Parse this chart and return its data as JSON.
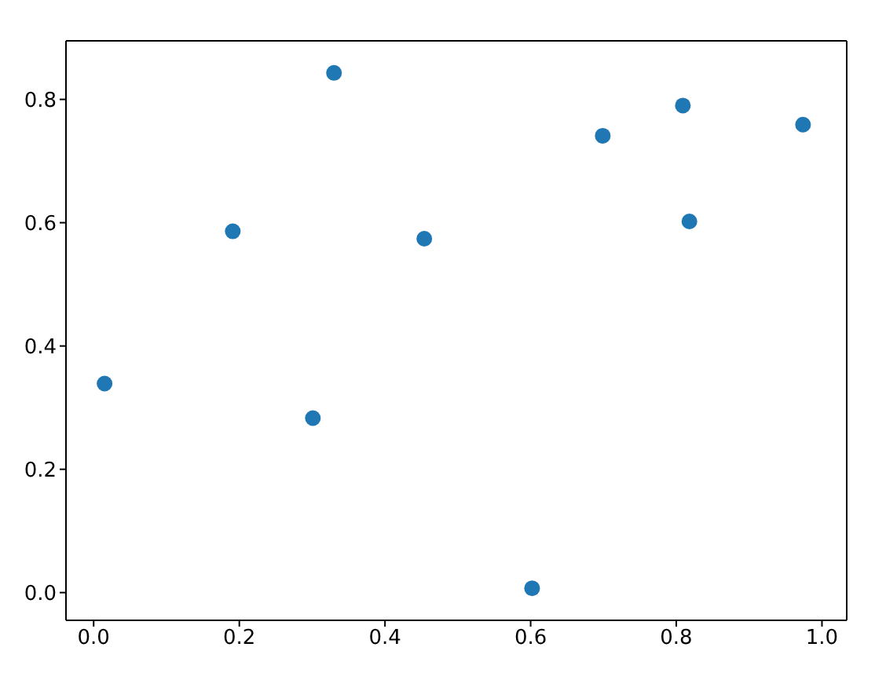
{
  "chart_data": {
    "type": "scatter",
    "x": [
      0.015,
      0.191,
      0.33,
      0.301,
      0.454,
      0.602,
      0.699,
      0.809,
      0.818,
      0.974
    ],
    "series": [
      {
        "color": "#1f77b4",
        "values": [
          0.339,
          0.586,
          0.843,
          0.283,
          0.574,
          0.007,
          0.741,
          0.79,
          0.602,
          0.759
        ]
      }
    ],
    "xlim": [
      -0.038,
      1.034
    ],
    "ylim": [
      -0.045,
      0.895
    ],
    "xticks": [
      {
        "value": 0,
        "label": "0.0"
      },
      0.2,
      0.4,
      0.6,
      0.8,
      {
        "value": 1,
        "label": "1.0"
      }
    ],
    "yticks": [
      {
        "value": 0,
        "label": "0.0"
      },
      0.2,
      0.4,
      0.6,
      0.8
    ],
    "marker": "circle",
    "grid": false,
    "legend": false
  }
}
